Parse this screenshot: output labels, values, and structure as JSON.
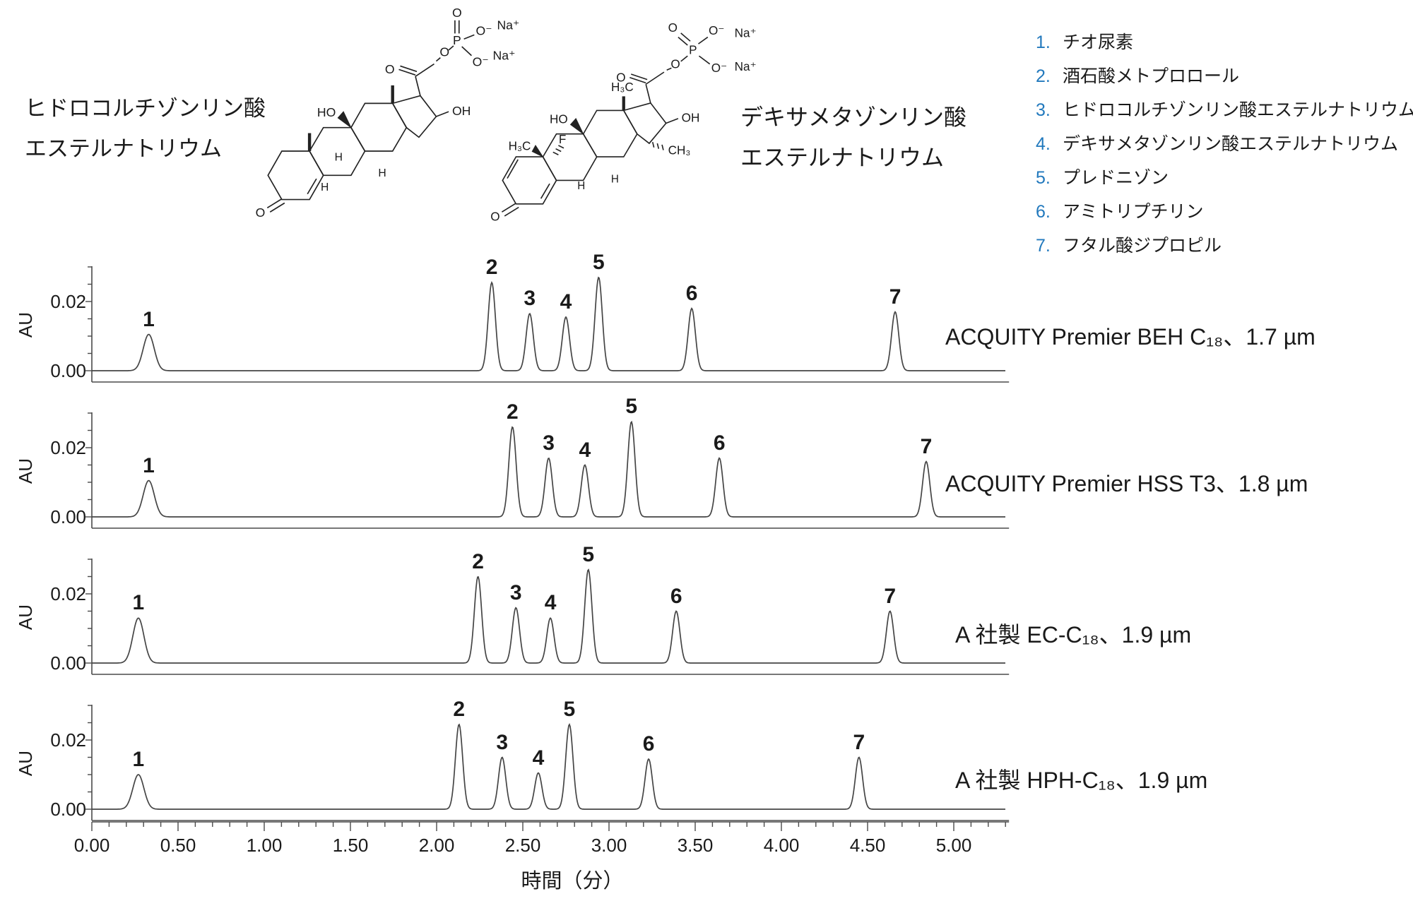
{
  "structures": {
    "left": {
      "name_lines": [
        "ヒドロコルチゾンリン酸",
        "エステルナトリウム"
      ],
      "labels": {
        "ketone_o": "O",
        "c20_o": "O",
        "ho": "HO",
        "oh": "OH",
        "ester_o": "O",
        "p": "P",
        "po": "O",
        "o_minus_1": "O⁻",
        "o_minus_2": "O⁻",
        "na_1": "Na⁺",
        "na_2": "Na⁺",
        "h_1": "H",
        "h_2": "H",
        "h_3": "H"
      }
    },
    "right": {
      "name_lines": [
        "デキサメタゾンリン酸",
        "エステルナトリウム"
      ],
      "labels": {
        "ketone_o": "O",
        "c20_o": "O",
        "ho": "HO",
        "oh": "OH",
        "h3c_top": "H₃C",
        "h3c_left": "H₃C",
        "f": "F",
        "ch3": "CH₃",
        "ester_o": "O",
        "p": "P",
        "po": "O",
        "o_minus_1": "O⁻",
        "o_minus_2": "O⁻",
        "na_1": "Na⁺",
        "na_2": "Na⁺",
        "h_1": "H",
        "h_2": "H"
      }
    }
  },
  "legend": {
    "items": [
      {
        "num": "1.",
        "label": "チオ尿素"
      },
      {
        "num": "2.",
        "label": "酒石酸メトプロロール"
      },
      {
        "num": "3.",
        "label": "ヒドロコルチゾンリン酸エステルナトリウム"
      },
      {
        "num": "4.",
        "label": "デキサメタゾンリン酸エステルナトリウム"
      },
      {
        "num": "5.",
        "label": "プレドニゾン"
      },
      {
        "num": "6.",
        "label": "アミトリプチリン"
      },
      {
        "num": "7.",
        "label": "フタル酸ジプロピル"
      }
    ]
  },
  "axis": {
    "y_label": "AU",
    "y_tick_top": "0.02",
    "y_tick_bottom": "0.00",
    "x_label": "時間（分）",
    "x_ticks": [
      "0.00",
      "0.50",
      "1.00",
      "1.50",
      "2.00",
      "2.50",
      "3.00",
      "3.50",
      "4.00",
      "4.50",
      "5.00"
    ]
  },
  "chart_data": [
    {
      "type": "line",
      "title": "ACQUITY Premier BEH C₁₈、1.7 µm",
      "ylabel": "AU",
      "xlabel": "時間（分）",
      "xlim": [
        0.0,
        5.3
      ],
      "ylim": [
        -0.004,
        0.0306
      ],
      "peaks": [
        {
          "n": "1",
          "t": 0.33,
          "au": 0.0105
        },
        {
          "n": "2",
          "t": 2.32,
          "au": 0.0255
        },
        {
          "n": "3",
          "t": 2.54,
          "au": 0.0165
        },
        {
          "n": "4",
          "t": 2.75,
          "au": 0.0155
        },
        {
          "n": "5",
          "t": 2.94,
          "au": 0.027
        },
        {
          "n": "6",
          "t": 3.48,
          "au": 0.018
        },
        {
          "n": "7",
          "t": 4.66,
          "au": 0.017
        }
      ]
    },
    {
      "type": "line",
      "title": "ACQUITY Premier HSS T3、1.8 µm",
      "ylabel": "AU",
      "xlabel": "時間（分）",
      "xlim": [
        0.0,
        5.3
      ],
      "ylim": [
        -0.004,
        0.0306
      ],
      "peaks": [
        {
          "n": "1",
          "t": 0.33,
          "au": 0.0105
        },
        {
          "n": "2",
          "t": 2.44,
          "au": 0.026
        },
        {
          "n": "3",
          "t": 2.65,
          "au": 0.017
        },
        {
          "n": "4",
          "t": 2.86,
          "au": 0.015
        },
        {
          "n": "5",
          "t": 3.13,
          "au": 0.0275
        },
        {
          "n": "6",
          "t": 3.64,
          "au": 0.017
        },
        {
          "n": "7",
          "t": 4.84,
          "au": 0.016
        }
      ]
    },
    {
      "type": "line",
      "title": "A 社製 EC-C₁₈、1.9 µm",
      "ylabel": "AU",
      "xlabel": "時間（分）",
      "xlim": [
        0.0,
        5.3
      ],
      "ylim": [
        -0.004,
        0.0306
      ],
      "peaks": [
        {
          "n": "1",
          "t": 0.27,
          "au": 0.013
        },
        {
          "n": "2",
          "t": 2.24,
          "au": 0.025
        },
        {
          "n": "3",
          "t": 2.46,
          "au": 0.016
        },
        {
          "n": "4",
          "t": 2.66,
          "au": 0.013
        },
        {
          "n": "5",
          "t": 2.88,
          "au": 0.027
        },
        {
          "n": "6",
          "t": 3.39,
          "au": 0.015
        },
        {
          "n": "7",
          "t": 4.63,
          "au": 0.015
        }
      ]
    },
    {
      "type": "line",
      "title": "A 社製 HPH-C₁₈、1.9 µm",
      "ylabel": "AU",
      "xlabel": "時間（分）",
      "xlim": [
        0.0,
        5.3
      ],
      "ylim": [
        -0.004,
        0.0306
      ],
      "peaks": [
        {
          "n": "1",
          "t": 0.27,
          "au": 0.01
        },
        {
          "n": "2",
          "t": 2.13,
          "au": 0.0245
        },
        {
          "n": "3",
          "t": 2.38,
          "au": 0.015
        },
        {
          "n": "4",
          "t": 2.59,
          "au": 0.0105
        },
        {
          "n": "5",
          "t": 2.77,
          "au": 0.0245
        },
        {
          "n": "6",
          "t": 3.23,
          "au": 0.0145
        },
        {
          "n": "7",
          "t": 4.45,
          "au": 0.015
        }
      ]
    }
  ]
}
